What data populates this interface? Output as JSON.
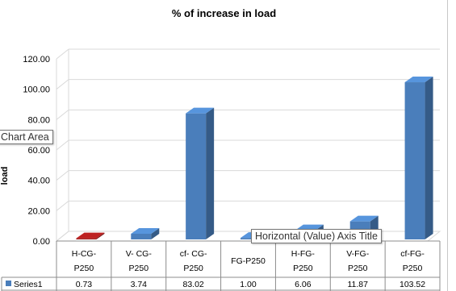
{
  "chart_data": {
    "type": "bar",
    "title": "% of increase in load",
    "ylabel": "load",
    "ylim": [
      0,
      120
    ],
    "yticks": [
      "0.00",
      "20.00",
      "40.00",
      "60.00",
      "80.00",
      "100.00",
      "120.00"
    ],
    "categories": [
      [
        "H-CG-",
        "P250"
      ],
      [
        "V- CG-",
        "P250"
      ],
      [
        "cf- CG-",
        "P250"
      ],
      [
        "FG-P250"
      ],
      [
        "H-FG-",
        "P250"
      ],
      [
        "V-FG-",
        "P250"
      ],
      [
        "cf-FG-",
        "P250"
      ]
    ],
    "series": [
      {
        "name": "Series1",
        "values": [
          0.73,
          3.74,
          83.02,
          1.0,
          6.06,
          11.87,
          103.52
        ],
        "labels": [
          "0.73",
          "3.74",
          "83.02",
          "1.00",
          "6.06",
          "11.87",
          "103.52"
        ]
      }
    ],
    "grid": true,
    "legend": "data-table"
  },
  "colors": {
    "bar": "#4a7ebb",
    "bar_highlight": "#a11c1c",
    "grid": "#d9d9d9"
  },
  "tooltips": {
    "chart_area": "Chart Area",
    "axis_title": "Horizontal (Value) Axis Title"
  }
}
